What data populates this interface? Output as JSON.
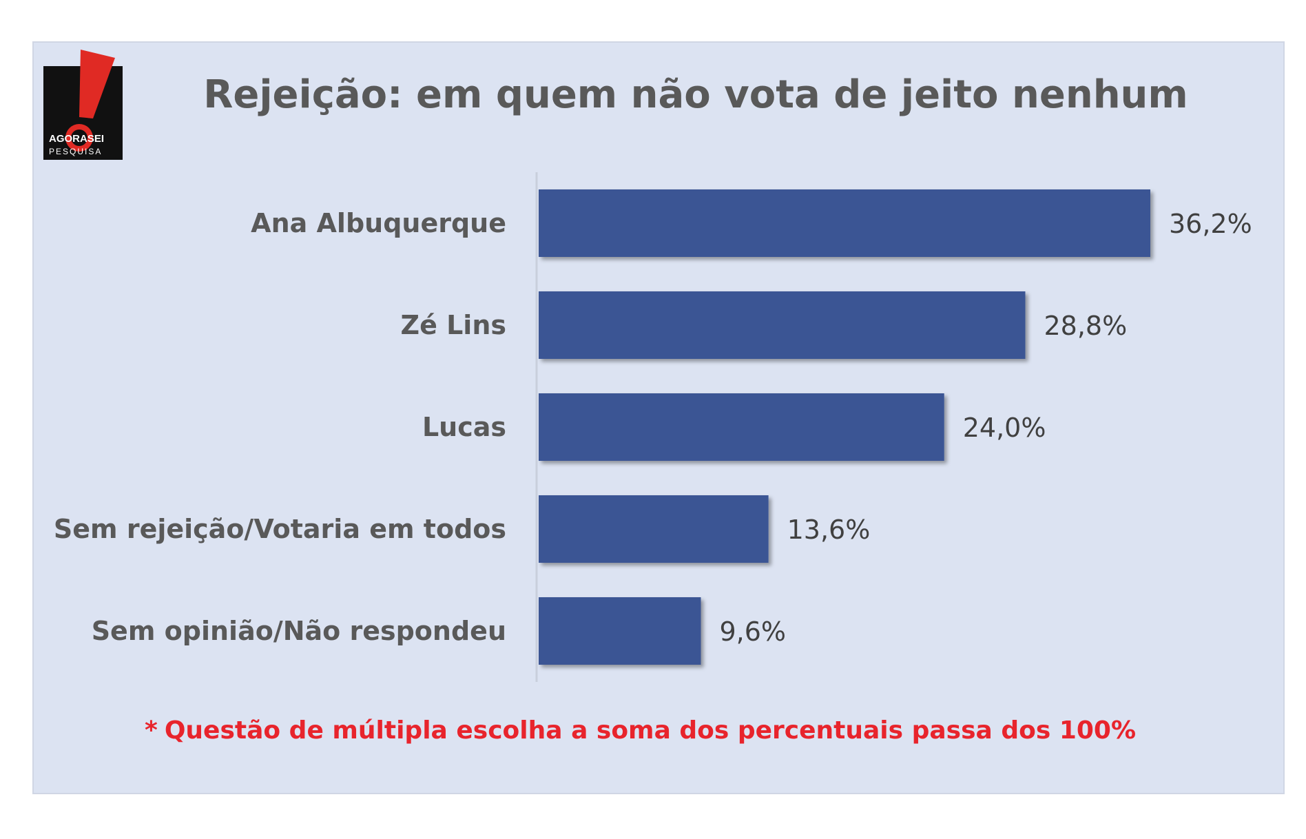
{
  "title": "Rejeição: em quem não vota de jeito nenhum",
  "logo": {
    "brand_top": "AGORASEI",
    "brand_bottom": "PESQUISA"
  },
  "footnote": {
    "mark": "*",
    "text": "Questão de múltipla escolha a soma dos percentuais passa dos 100%"
  },
  "colors": {
    "bar": "#3a5594",
    "footnote": "#e8242c",
    "background": "#dce3f2"
  },
  "chart_data": {
    "type": "bar",
    "orientation": "horizontal",
    "title": "Rejeição: em quem não vota de jeito nenhum",
    "categories": [
      "Ana Albuquerque",
      "Zé Lins",
      "Lucas",
      "Sem rejeição/Votaria em todos",
      "Sem opinião/Não respondeu"
    ],
    "values": [
      36.2,
      28.8,
      24.0,
      13.6,
      9.6
    ],
    "value_labels": [
      "36,2%",
      "28,8%",
      "24,0%",
      "13,6%",
      "9,6%"
    ],
    "xlim": [
      0,
      36.2
    ],
    "grid": false,
    "legend": "none"
  }
}
